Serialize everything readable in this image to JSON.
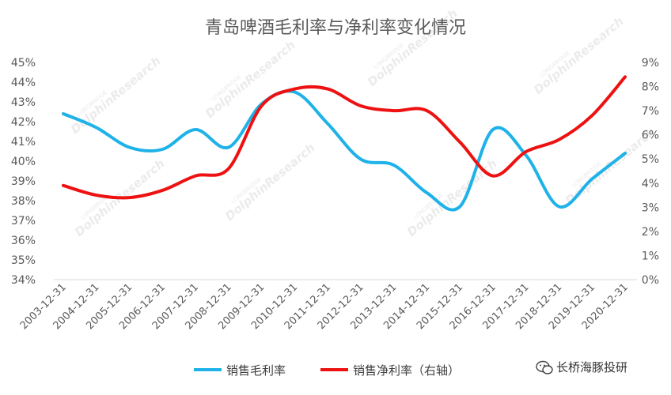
{
  "chart_data": {
    "type": "line",
    "title": "青岛啤酒毛利率与净利率变化情况",
    "categories": [
      "2003-12-31",
      "2004-12-31",
      "2005-12-31",
      "2006-12-31",
      "2007-12-31",
      "2008-12-31",
      "2009-12-31",
      "2010-12-31",
      "2011-12-31",
      "2012-12-31",
      "2013-12-31",
      "2014-12-31",
      "2015-12-31",
      "2016-12-31",
      "2017-12-31",
      "2018-12-31",
      "2019-12-31",
      "2020-12-31"
    ],
    "y_left": {
      "ticks": [
        "34%",
        "35%",
        "36%",
        "37%",
        "38%",
        "39%",
        "40%",
        "41%",
        "42%",
        "43%",
        "44%",
        "45%"
      ],
      "range": [
        34,
        45
      ]
    },
    "y_right": {
      "ticks": [
        "0%",
        "1%",
        "2%",
        "3%",
        "4%",
        "5%",
        "6%",
        "7%",
        "8%",
        "9%"
      ],
      "range": [
        0,
        9
      ]
    },
    "series": [
      {
        "name": "销售毛利率",
        "axis": "left",
        "color": "#1fb2e8",
        "values": [
          42.4,
          41.7,
          40.7,
          40.6,
          41.6,
          40.7,
          42.9,
          43.5,
          41.9,
          40.1,
          39.8,
          38.4,
          37.7,
          41.6,
          40.3,
          37.7,
          39.1,
          40.4
        ]
      },
      {
        "name": "销售净利率（右轴）",
        "axis": "right",
        "color": "#ee1111",
        "values": [
          3.9,
          3.5,
          3.4,
          3.7,
          4.3,
          4.6,
          7.2,
          7.9,
          7.9,
          7.2,
          7.0,
          7.0,
          5.7,
          4.3,
          5.3,
          5.8,
          6.8,
          8.4
        ]
      }
    ],
    "grid": false,
    "legend": "bottom"
  },
  "watermark": {
    "brand": "长桥海豚投研",
    "text": "DolphinResearch",
    "small_text": "LONGBRIDGE"
  }
}
